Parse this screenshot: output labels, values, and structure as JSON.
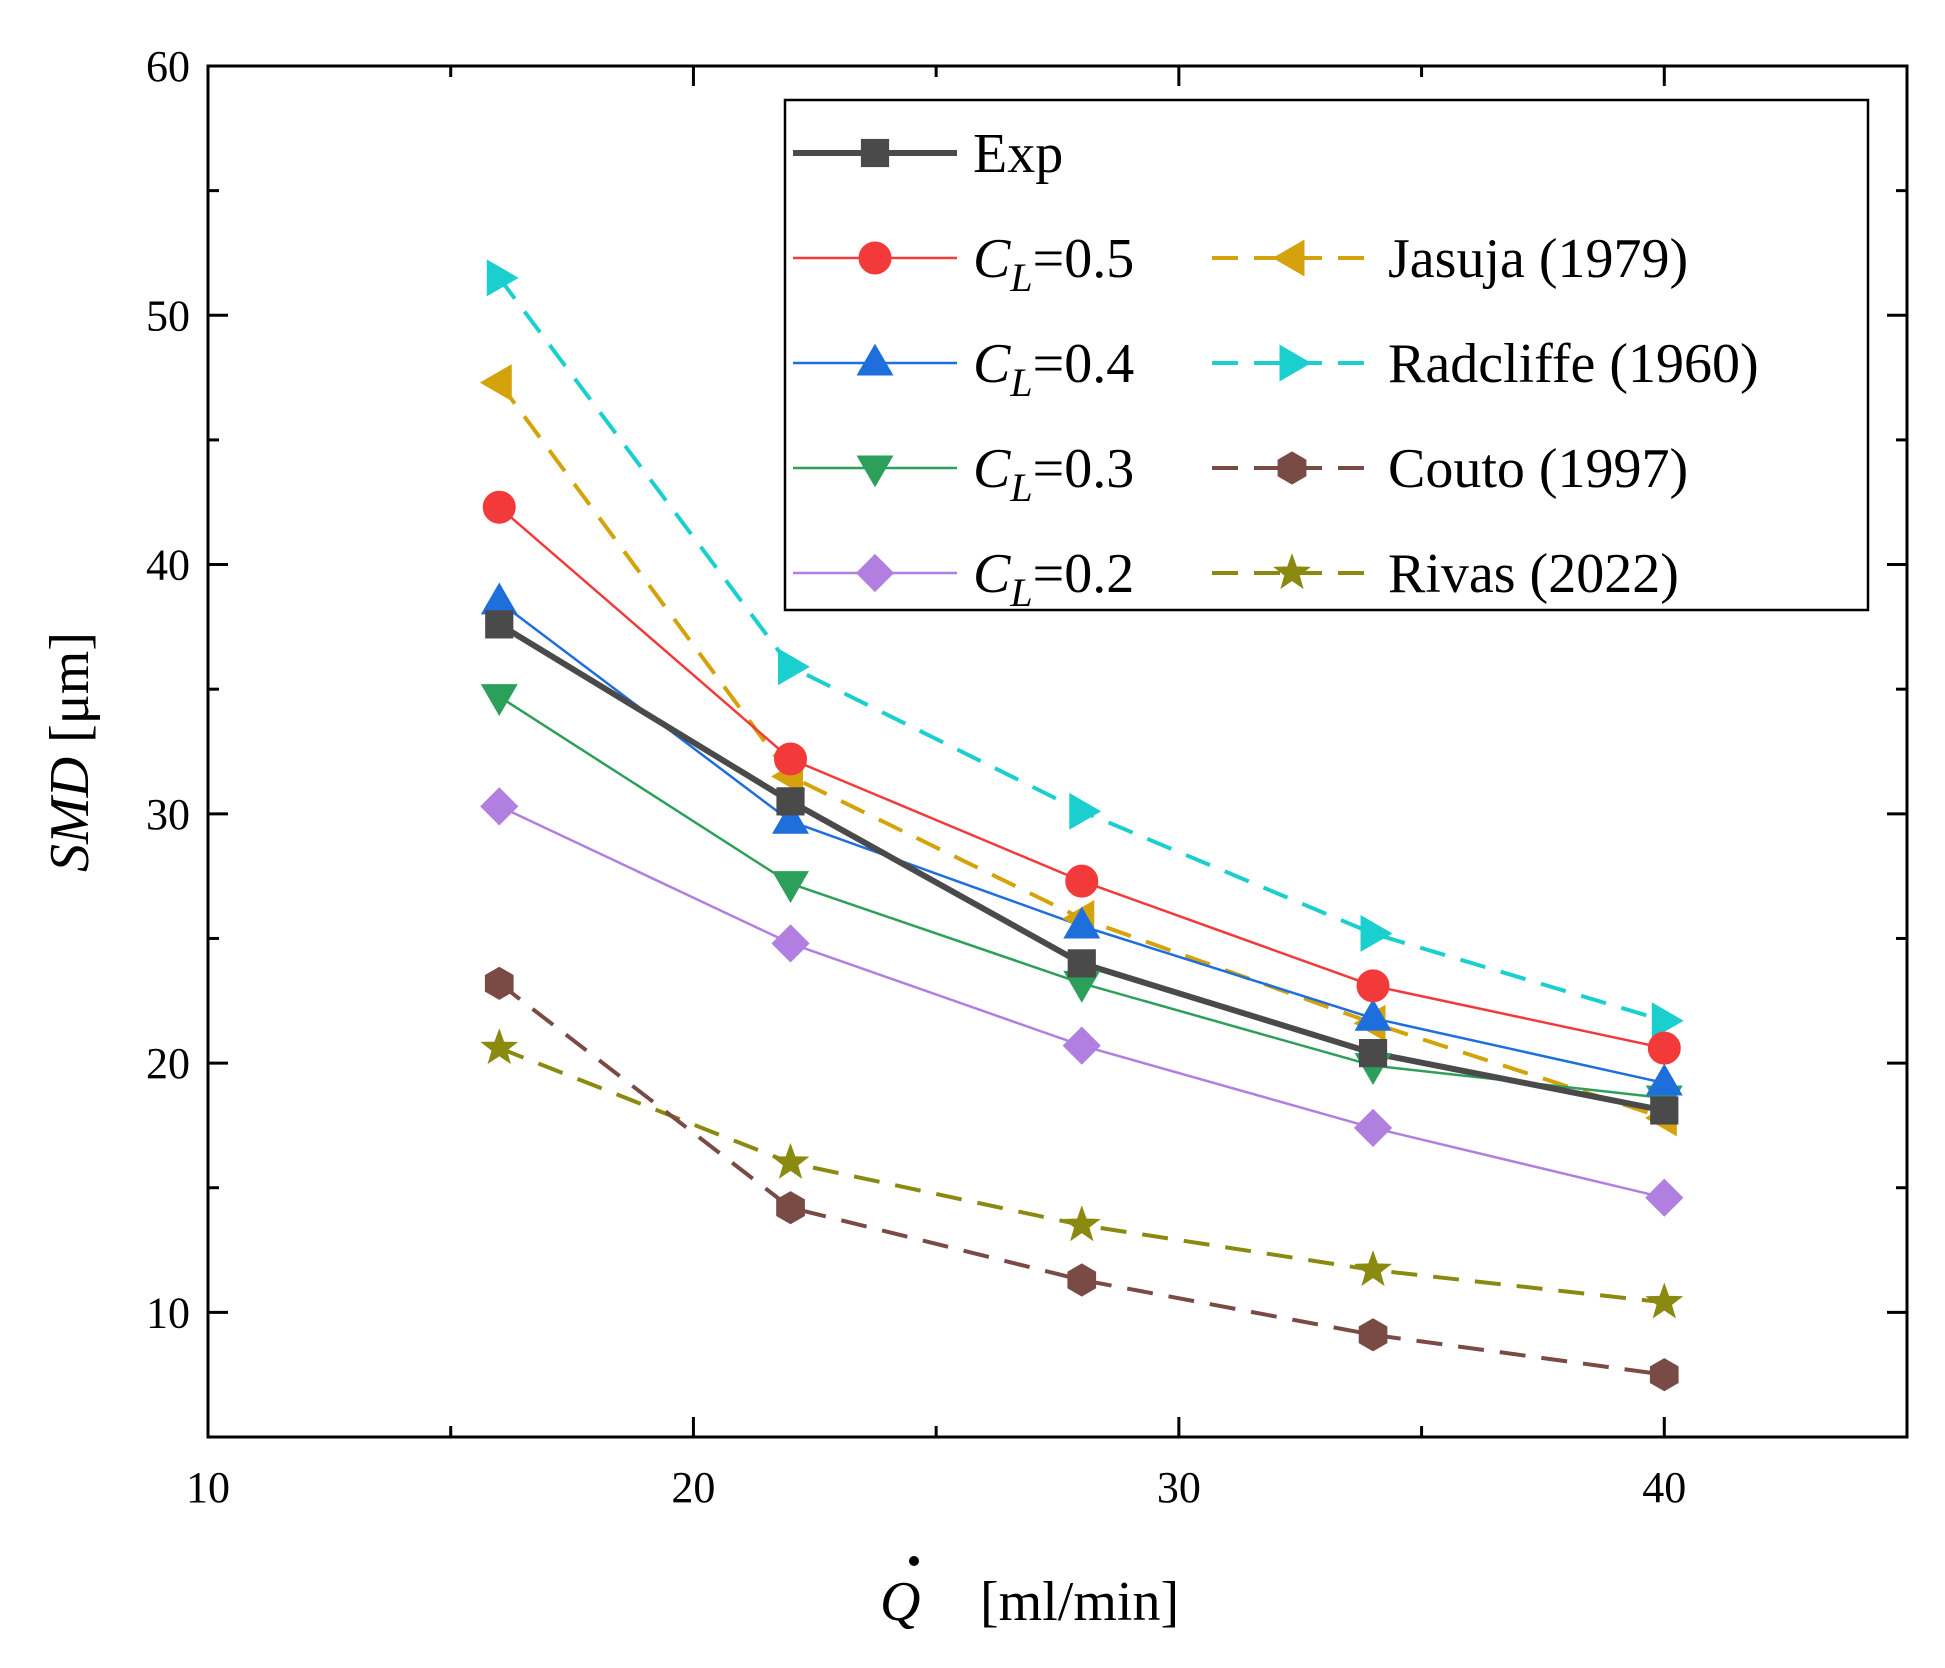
{
  "chart_data": {
    "type": "line",
    "title": "",
    "xlabel_symbol": "Q",
    "xlabel_unit": "[ml/min]",
    "ylabel_italic": "SMD",
    "ylabel_unit": "[μm]",
    "xlim": [
      10,
      45
    ],
    "ylim": [
      5,
      60
    ],
    "x_ticks": [
      10,
      20,
      30,
      40
    ],
    "y_ticks": [
      10,
      20,
      30,
      40,
      50,
      60
    ],
    "legend_position": "top-right",
    "x": [
      16,
      22,
      28,
      34,
      40
    ],
    "series": [
      {
        "name": "Exp",
        "legend_prefix": "",
        "legend_sub": "",
        "legend_suffix": "Exp",
        "values": [
          37.6,
          30.5,
          24.0,
          20.4,
          18.1
        ],
        "color": "#4a4a4a",
        "marker": "square",
        "dashed": false,
        "width": 6
      },
      {
        "name": "C_L=0.5",
        "legend_prefix": "C",
        "legend_sub": "L",
        "legend_suffix": "=0.5",
        "values": [
          42.3,
          32.2,
          27.3,
          23.1,
          20.6
        ],
        "color": "#f23a3a",
        "marker": "circle",
        "dashed": false,
        "width": 2.5
      },
      {
        "name": "C_L=0.4",
        "legend_prefix": "C",
        "legend_sub": "L",
        "legend_suffix": "=0.4",
        "values": [
          38.5,
          29.7,
          25.5,
          21.8,
          19.2
        ],
        "color": "#1e6fdc",
        "marker": "triangle-up",
        "dashed": false,
        "width": 2.5
      },
      {
        "name": "C_L=0.3",
        "legend_prefix": "C",
        "legend_sub": "L",
        "legend_suffix": "=0.3",
        "values": [
          34.7,
          27.2,
          23.2,
          19.9,
          18.6
        ],
        "color": "#2ca05a",
        "marker": "triangle-down",
        "dashed": false,
        "width": 2.5
      },
      {
        "name": "C_L=0.2",
        "legend_prefix": "C",
        "legend_sub": "L",
        "legend_suffix": "=0.2",
        "values": [
          30.3,
          24.8,
          20.7,
          17.4,
          14.6
        ],
        "color": "#b07fe0",
        "marker": "diamond",
        "dashed": false,
        "width": 2.5
      },
      {
        "name": "Jasuja (1979)",
        "legend_prefix": "",
        "legend_sub": "",
        "legend_suffix": "Jasuja (1979)",
        "values": [
          47.3,
          31.5,
          25.8,
          21.6,
          17.8
        ],
        "color": "#d4a20a",
        "marker": "triangle-left",
        "dashed": true,
        "width": 4
      },
      {
        "name": "Radcliffe (1960)",
        "legend_prefix": "",
        "legend_sub": "",
        "legend_suffix": "Radcliffe (1960)",
        "values": [
          51.5,
          35.9,
          30.1,
          25.2,
          21.7
        ],
        "color": "#1ccfcf",
        "marker": "triangle-right",
        "dashed": true,
        "width": 4
      },
      {
        "name": "Couto (1997)",
        "legend_prefix": "",
        "legend_sub": "",
        "legend_suffix": "Couto (1997)",
        "values": [
          23.2,
          14.2,
          11.3,
          9.1,
          7.5
        ],
        "color": "#7a4a44",
        "marker": "hexagon",
        "dashed": true,
        "width": 4
      },
      {
        "name": "Rivas (2022)",
        "legend_prefix": "",
        "legend_sub": "",
        "legend_suffix": "Rivas (2022)",
        "values": [
          20.6,
          16.0,
          13.5,
          11.7,
          10.4
        ],
        "color": "#8a8a10",
        "marker": "star",
        "dashed": true,
        "width": 4
      }
    ]
  }
}
